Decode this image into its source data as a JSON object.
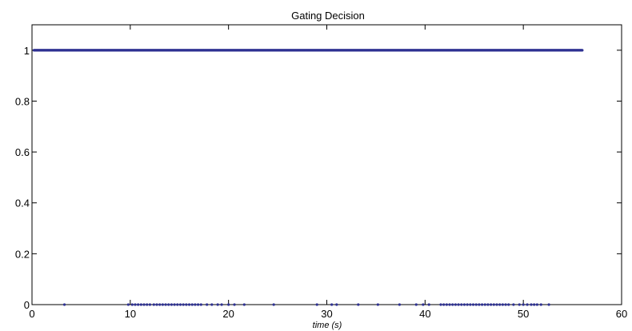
{
  "chart_data": {
    "type": "scatter",
    "title": "Gating Decision",
    "xlabel": "time (s)",
    "ylabel": "",
    "xlim": [
      0,
      60
    ],
    "ylim": [
      0,
      1.1
    ],
    "xticks": [
      0,
      10,
      20,
      30,
      40,
      50,
      60
    ],
    "yticks": [
      0,
      0.2,
      0.4,
      0.6,
      0.8,
      1
    ],
    "xtick_labels": [
      "0",
      "10",
      "20",
      "30",
      "40",
      "50",
      "60"
    ],
    "ytick_labels": [
      "0",
      "0.2",
      "0.4",
      "0.6",
      "0.8",
      "1"
    ],
    "grid": false,
    "marker_color": "#2e3192",
    "series": [
      {
        "ones_range": [
          0.2,
          56
        ],
        "ones_step": 0.05,
        "zero_points": [
          3.3,
          9.8,
          10.2,
          10.5,
          10.8,
          11.1,
          11.4,
          11.7,
          12.0,
          12.4,
          12.7,
          13.0,
          13.3,
          13.6,
          13.9,
          14.2,
          14.5,
          14.8,
          15.1,
          15.4,
          15.7,
          16.0,
          16.3,
          16.6,
          16.9,
          17.2,
          17.8,
          18.3,
          18.9,
          19.3,
          20.0,
          20.6,
          21.6,
          24.6,
          29.0,
          30.5,
          31.0,
          33.2,
          35.2,
          37.4,
          39.1,
          39.8,
          40.4,
          41.6,
          41.9,
          42.2,
          42.5,
          42.8,
          43.1,
          43.4,
          43.7,
          44.0,
          44.3,
          44.6,
          44.9,
          45.2,
          45.5,
          45.8,
          46.1,
          46.4,
          46.7,
          47.0,
          47.3,
          47.6,
          47.9,
          48.2,
          48.5,
          49.0,
          49.6,
          50.0,
          50.4,
          50.8,
          51.1,
          51.4,
          51.8,
          52.6
        ]
      }
    ]
  }
}
